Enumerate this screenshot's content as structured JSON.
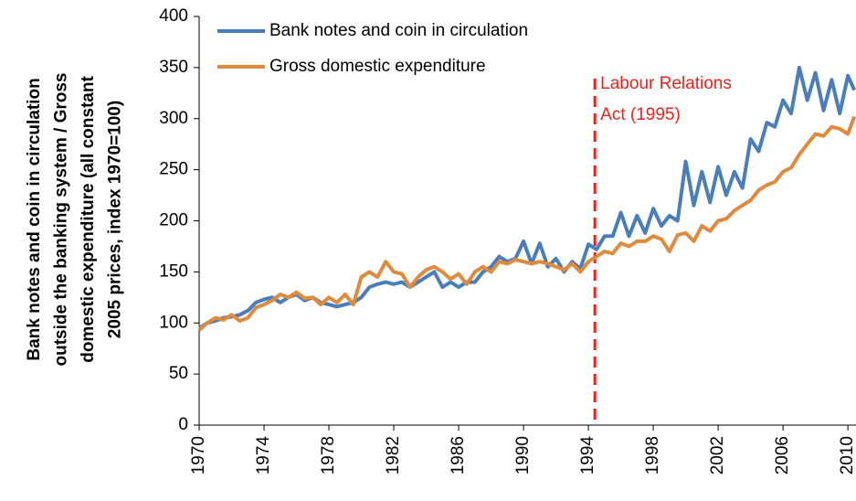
{
  "chart_data": {
    "type": "line",
    "y_label_lines": [
      "Bank notes and coin in circulation",
      "outside the banking  system / Gross",
      "domestic expenditure (all constant",
      "2005 prices, index 1970=100)"
    ],
    "x": [
      1970,
      1970.5,
      1971,
      1971.5,
      1972,
      1972.5,
      1973,
      1973.5,
      1974,
      1974.5,
      1975,
      1975.5,
      1976,
      1976.5,
      1977,
      1977.5,
      1978,
      1978.5,
      1979,
      1979.5,
      1980,
      1980.5,
      1981,
      1981.5,
      1982,
      1982.5,
      1983,
      1983.5,
      1984,
      1984.5,
      1985,
      1985.5,
      1986,
      1986.5,
      1987,
      1987.5,
      1988,
      1988.5,
      1989,
      1989.5,
      1990,
      1990.5,
      1991,
      1991.5,
      1992,
      1992.5,
      1993,
      1993.5,
      1994,
      1994.5,
      1995,
      1995.5,
      1996,
      1996.5,
      1997,
      1997.5,
      1998,
      1998.5,
      1999,
      1999.5,
      2000,
      2000.5,
      2001,
      2001.5,
      2002,
      2002.5,
      2003,
      2003.5,
      2004,
      2004.5,
      2005,
      2005.5,
      2006,
      2006.5,
      2007,
      2007.5,
      2008,
      2008.5,
      2009,
      2009.5,
      2010,
      2010.4
    ],
    "series": [
      {
        "name": "Bank notes and coin in circulation",
        "color": "#4a7ebb",
        "values": [
          95,
          100,
          102,
          105,
          106,
          108,
          112,
          120,
          123,
          125,
          120,
          125,
          128,
          122,
          125,
          120,
          118,
          116,
          118,
          120,
          125,
          135,
          138,
          140,
          138,
          140,
          135,
          140,
          145,
          150,
          135,
          140,
          135,
          140,
          140,
          150,
          155,
          165,
          160,
          163,
          180,
          158,
          178,
          155,
          163,
          150,
          160,
          153,
          177,
          172,
          185,
          185,
          208,
          185,
          205,
          188,
          212,
          195,
          205,
          200,
          258,
          215,
          248,
          218,
          253,
          225,
          248,
          232,
          280,
          268,
          296,
          292,
          318,
          305,
          350,
          318,
          345,
          308,
          338,
          305,
          342,
          328
        ]
      },
      {
        "name": "Gross domestic expenditure",
        "color": "#e08a3c",
        "values": [
          93,
          100,
          105,
          103,
          108,
          102,
          105,
          115,
          118,
          122,
          128,
          125,
          130,
          124,
          125,
          118,
          125,
          120,
          128,
          118,
          145,
          150,
          145,
          160,
          150,
          148,
          135,
          145,
          152,
          155,
          150,
          143,
          148,
          138,
          150,
          155,
          150,
          160,
          158,
          162,
          160,
          158,
          160,
          158,
          155,
          152,
          158,
          150,
          160,
          165,
          170,
          168,
          178,
          175,
          180,
          180,
          185,
          182,
          170,
          186,
          188,
          180,
          195,
          190,
          200,
          202,
          210,
          215,
          220,
          230,
          235,
          238,
          248,
          252,
          265,
          275,
          285,
          283,
          292,
          290,
          285,
          302
        ]
      }
    ],
    "xlim": [
      1970,
      2010.5
    ],
    "xticks": [
      1970,
      1974,
      1978,
      1982,
      1986,
      1990,
      1994,
      1998,
      2002,
      2006,
      2010
    ],
    "ylim": [
      0,
      400
    ],
    "yticks": [
      0,
      50,
      100,
      150,
      200,
      250,
      300,
      350,
      400
    ],
    "annotation": {
      "lines": [
        "Labour Relations",
        "Act (1995)"
      ],
      "x": 1994.4,
      "color": "#e8231c"
    },
    "legend": "upper left"
  }
}
